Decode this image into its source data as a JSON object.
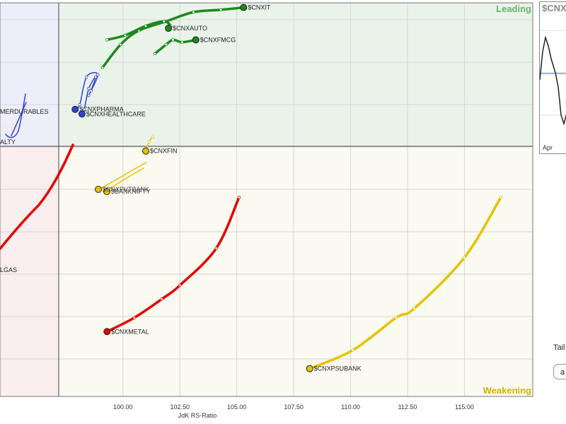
{
  "chart_data": {
    "type": "scatter",
    "subtype": "relative-rotation-graph",
    "xlabel": "JdK RS-Ratio",
    "x_ticks": [
      "100.00",
      "102.50",
      "105.00",
      "107.50",
      "110.00",
      "112.50",
      "115.00"
    ],
    "x_tick_values": [
      100,
      102.5,
      105,
      107.5,
      110,
      112.5,
      115
    ],
    "xlim": [
      94.6,
      118.0
    ],
    "ylim": [
      96.0,
      104.5
    ],
    "center": [
      100,
      100
    ],
    "quadrants": {
      "leading": "Leading",
      "weakening": "Weakening"
    },
    "series": [
      {
        "name": "$CNXIT",
        "quadrant": "leading",
        "color": "#1a8a1a",
        "points": [
          [
            99.1,
            103.1
          ],
          [
            99.9,
            103.6
          ],
          [
            100.7,
            103.9
          ],
          [
            101.9,
            104.1
          ],
          [
            103.1,
            104.3
          ],
          [
            104.3,
            104.35
          ],
          [
            105.3,
            104.4
          ]
        ]
      },
      {
        "name": "$CNXAUTO",
        "quadrant": "leading",
        "color": "#1a8a1a",
        "points": [
          [
            99.3,
            103.7
          ],
          [
            100.1,
            103.8
          ],
          [
            101.0,
            104.0
          ],
          [
            101.8,
            104.1
          ],
          [
            102.1,
            104.0
          ],
          [
            102.0,
            103.95
          ]
        ]
      },
      {
        "name": "$CNXFMCG",
        "quadrant": "leading",
        "color": "#1a8a1a",
        "points": [
          [
            101.4,
            103.4
          ],
          [
            101.9,
            103.6
          ],
          [
            102.2,
            103.7
          ],
          [
            102.6,
            103.65
          ],
          [
            103.2,
            103.7
          ]
        ]
      },
      {
        "name": "$CNXPHARMA",
        "quadrant": "improving",
        "color": "#3344cc",
        "points": [
          [
            98.5,
            102.5
          ],
          [
            98.9,
            102.95
          ],
          [
            98.4,
            102.9
          ],
          [
            98.1,
            102.3
          ],
          [
            97.9,
            102.2
          ]
        ]
      },
      {
        "name": "$CNXHEALTHCARE",
        "quadrant": "improving",
        "color": "#3344cc",
        "points": [
          [
            98.6,
            102.6
          ],
          [
            98.8,
            102.9
          ],
          [
            98.5,
            102.65
          ],
          [
            98.3,
            102.2
          ],
          [
            98.2,
            102.1
          ]
        ]
      },
      {
        "name": "$CNXFIN",
        "quadrant": "weakening",
        "color": "#e6c200",
        "points": [
          [
            101.3,
            101.6
          ],
          [
            101.15,
            101.5
          ],
          [
            101.0,
            101.3
          ]
        ]
      },
      {
        "name": "$CNXPSUBANK",
        "quadrant": "weakening",
        "color": "#e6c200",
        "points": [
          [
            116.6,
            100.3
          ],
          [
            115.0,
            99.0
          ],
          [
            112.8,
            97.9
          ],
          [
            112.0,
            97.7
          ],
          [
            110.1,
            97.0
          ],
          [
            108.2,
            96.6
          ]
        ]
      },
      {
        "name": "$CNXMETAL",
        "quadrant": "lagging",
        "color": "#e60000",
        "points": [
          [
            105.1,
            100.3
          ],
          [
            104.1,
            99.2
          ],
          [
            102.5,
            98.4
          ],
          [
            101.7,
            98.1
          ],
          [
            100.5,
            97.7
          ],
          [
            99.3,
            97.4
          ]
        ]
      }
    ],
    "grid": true
  },
  "labels": {
    "cnxit": "$CNXIT",
    "cnxauto": "$CNXAUTO",
    "cnxfmcg": "$CNXFMCG",
    "cnxpharma": "$CNXPHARMA",
    "cnxhealthcare": "$CNXHEALTHCARE",
    "cnxfin": "$CNXFIN",
    "cnxpsubank": "$CNXPSUBANK",
    "cnxmetal": "$CNXMETAL",
    "consumer_durables_partial": "MERDURABLES",
    "realty_partial": "ALTY",
    "oil_gas_partial": "LGAS",
    "private_bank_partial": "$CNXPVTBANK",
    "bank_partial": "$BANKNIFTY"
  },
  "side_panel": {
    "title": "$CNX",
    "month": "Apr"
  },
  "controls": {
    "tail_label": "Tail",
    "button_label": "a"
  }
}
